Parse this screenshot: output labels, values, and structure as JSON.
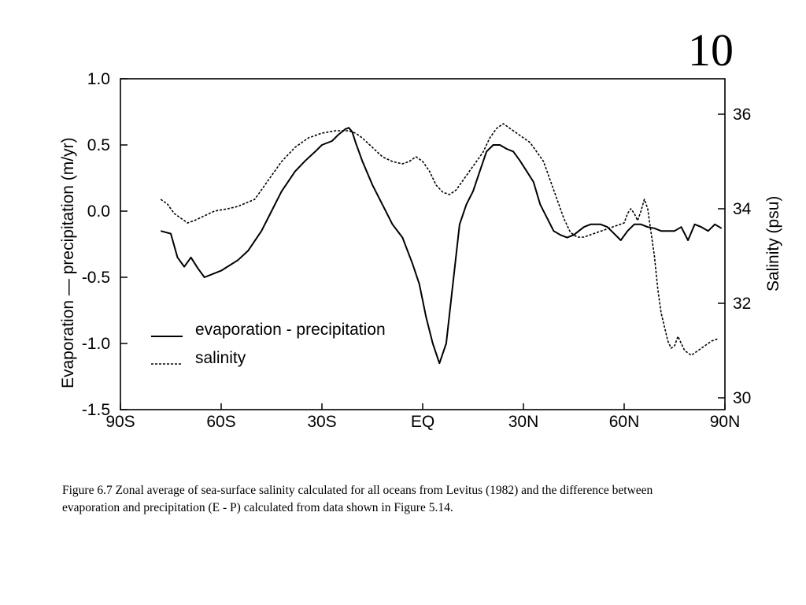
{
  "slide": {
    "number": "10"
  },
  "caption": "Figure 6.7 Zonal average of sea-surface salinity calculated for all oceans from Levitus (1982) and the difference between evaporation and precipitation (E - P) calculated from data shown in Figure 5.14.",
  "chart_data": {
    "type": "line",
    "title": "",
    "xlabel": "",
    "ylabel": "Evaporation — precipitation (m/yr)",
    "y2label": "Salinity (psu)",
    "xlim": [
      -90,
      90
    ],
    "ylim": [
      -1.5,
      1.0
    ],
    "y2lim": [
      29.75,
      36.75
    ],
    "x_ticks": [
      {
        "value": -90,
        "label": "90S"
      },
      {
        "value": -60,
        "label": "60S"
      },
      {
        "value": -30,
        "label": "30S"
      },
      {
        "value": 0,
        "label": "EQ"
      },
      {
        "value": 30,
        "label": "30N"
      },
      {
        "value": 60,
        "label": "60N"
      },
      {
        "value": 90,
        "label": "90N"
      }
    ],
    "y_ticks": [
      "1.0",
      "0.5",
      "0.0",
      "-0.5",
      "-1.0",
      "-1.5"
    ],
    "y2_ticks": [
      "36",
      "34",
      "32",
      "30"
    ],
    "legend_position": "lower-left",
    "series": [
      {
        "name": "evaporation - precipitation",
        "axis": "left",
        "style": "solid",
        "x": [
          -78,
          -75,
          -73,
          -71,
          -69,
          -67,
          -65,
          -60,
          -55,
          -52,
          -48,
          -45,
          -42,
          -38,
          -35,
          -32,
          -30,
          -27,
          -25,
          -23,
          -22,
          -21,
          -20,
          -18,
          -15,
          -12,
          -9,
          -6,
          -3,
          -1,
          1,
          3,
          5,
          7,
          9,
          11,
          13,
          15,
          17,
          19,
          21,
          23,
          25,
          27,
          29,
          31,
          33,
          35,
          37,
          39,
          41,
          43,
          45,
          48,
          50,
          53,
          55,
          57,
          59,
          61,
          63,
          65,
          67,
          69,
          71,
          73,
          75,
          77,
          79,
          81,
          83,
          85,
          87,
          89
        ],
        "values": [
          -0.15,
          -0.17,
          -0.35,
          -0.42,
          -0.35,
          -0.43,
          -0.5,
          -0.45,
          -0.37,
          -0.3,
          -0.15,
          0.0,
          0.15,
          0.3,
          0.38,
          0.45,
          0.5,
          0.53,
          0.58,
          0.62,
          0.63,
          0.6,
          0.52,
          0.38,
          0.2,
          0.05,
          -0.1,
          -0.2,
          -0.4,
          -0.55,
          -0.8,
          -1.0,
          -1.15,
          -1.0,
          -0.55,
          -0.1,
          0.05,
          0.15,
          0.3,
          0.45,
          0.5,
          0.5,
          0.47,
          0.45,
          0.38,
          0.3,
          0.22,
          0.05,
          -0.05,
          -0.15,
          -0.18,
          -0.2,
          -0.18,
          -0.12,
          -0.1,
          -0.1,
          -0.12,
          -0.17,
          -0.22,
          -0.15,
          -0.1,
          -0.1,
          -0.12,
          -0.13,
          -0.15,
          -0.15,
          -0.15,
          -0.12,
          -0.22,
          -0.1,
          -0.12,
          -0.15,
          -0.1,
          -0.13
        ]
      },
      {
        "name": "salinity",
        "axis": "right",
        "style": "dashed",
        "x": [
          -78,
          -76,
          -74,
          -72,
          -70,
          -68,
          -65,
          -62,
          -58,
          -55,
          -50,
          -46,
          -42,
          -38,
          -34,
          -30,
          -26,
          -22,
          -20,
          -18,
          -15,
          -12,
          -9,
          -6,
          -4,
          -2,
          0,
          2,
          4,
          6,
          8,
          10,
          12,
          14,
          16,
          18,
          20,
          22,
          24,
          26,
          28,
          30,
          32,
          34,
          36,
          38,
          40,
          42,
          44,
          46,
          48,
          50,
          52,
          54,
          56,
          58,
          60,
          61,
          62,
          63,
          64,
          65,
          66,
          67,
          68,
          69,
          70,
          71,
          72,
          73,
          74,
          75,
          76,
          78,
          80,
          82,
          84,
          86,
          88
        ],
        "values": [
          34.2,
          34.1,
          33.9,
          33.8,
          33.7,
          33.75,
          33.85,
          33.95,
          34.0,
          34.05,
          34.2,
          34.6,
          35.0,
          35.3,
          35.5,
          35.6,
          35.65,
          35.65,
          35.6,
          35.5,
          35.3,
          35.1,
          35.0,
          34.95,
          35.0,
          35.1,
          35.0,
          34.8,
          34.5,
          34.35,
          34.3,
          34.4,
          34.6,
          34.8,
          35.0,
          35.2,
          35.5,
          35.7,
          35.8,
          35.7,
          35.6,
          35.5,
          35.4,
          35.2,
          35.0,
          34.6,
          34.2,
          33.8,
          33.5,
          33.4,
          33.4,
          33.45,
          33.5,
          33.55,
          33.6,
          33.65,
          33.7,
          33.9,
          34.0,
          33.9,
          33.75,
          33.95,
          34.2,
          34.0,
          33.5,
          33.0,
          32.3,
          31.8,
          31.5,
          31.2,
          31.05,
          31.1,
          31.3,
          31.0,
          30.9,
          31.0,
          31.1,
          31.2,
          31.25
        ]
      }
    ]
  }
}
